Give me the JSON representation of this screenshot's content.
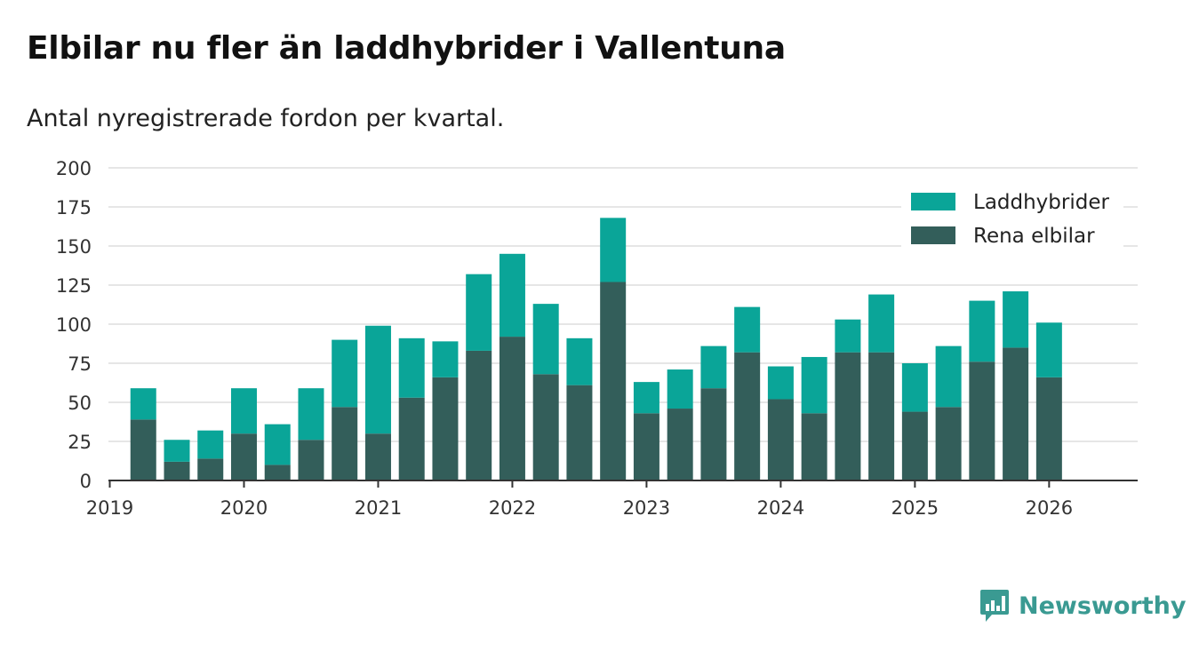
{
  "title": "Elbilar nu fler än laddhybrider i Vallentuna",
  "subtitle": "Antal nyregistrerade fordon per kvartal.",
  "brand": {
    "name": "Newsworthy",
    "icon": "newsworthy-logo-icon",
    "color": "#3a9a92"
  },
  "colors": {
    "laddhybrider": "#0aa598",
    "elbilar": "#335e5a",
    "grid": "#dddddd",
    "axis": "#333333"
  },
  "chart_data": {
    "type": "bar",
    "stacked": true,
    "title": "Elbilar nu fler än laddhybrider i Vallentuna",
    "subtitle": "Antal nyregistrerade fordon per kvartal.",
    "xlabel": "",
    "ylabel": "",
    "ylim": [
      0,
      200
    ],
    "yticks": [
      0,
      25,
      50,
      75,
      100,
      125,
      150,
      175,
      200
    ],
    "ytick_labels": [
      "0",
      "25",
      "50",
      "75",
      "100",
      "125",
      "150",
      "175",
      "200"
    ],
    "xticks": [
      2019,
      2020,
      2021,
      2022,
      2023,
      2024,
      2025,
      2026
    ],
    "xtick_labels": [
      "2019",
      "2020",
      "2021",
      "2022",
      "2023",
      "2024",
      "2025",
      "2026"
    ],
    "grid": true,
    "legend_position": "top-right",
    "categories": [
      "2019 Q2",
      "2019 Q3",
      "2019 Q4",
      "2020 Q1",
      "2020 Q2",
      "2020 Q3",
      "2020 Q4",
      "2021 Q1",
      "2021 Q2",
      "2021 Q3",
      "2021 Q4",
      "2022 Q1",
      "2022 Q2",
      "2022 Q3",
      "2022 Q4",
      "2023 Q1",
      "2023 Q2",
      "2023 Q3",
      "2023 Q4",
      "2024 Q1",
      "2024 Q2",
      "2024 Q3",
      "2024 Q4",
      "2025 Q1",
      "2025 Q2",
      "2025 Q3",
      "2025 Q4",
      "2026 Q1"
    ],
    "x_positions": [
      2019.25,
      2019.5,
      2019.75,
      2020.0,
      2020.25,
      2020.5,
      2020.75,
      2021.0,
      2021.25,
      2021.5,
      2021.75,
      2022.0,
      2022.25,
      2022.5,
      2022.75,
      2023.0,
      2023.25,
      2023.5,
      2023.75,
      2024.0,
      2024.25,
      2024.5,
      2024.75,
      2025.0,
      2025.25,
      2025.5,
      2025.75,
      2026.0
    ],
    "series": [
      {
        "name": "Rena elbilar",
        "values": [
          39,
          12,
          14,
          30,
          10,
          26,
          47,
          30,
          53,
          66,
          83,
          92,
          68,
          61,
          127,
          43,
          46,
          59,
          82,
          52,
          43,
          82,
          82,
          44,
          47,
          76,
          85,
          66
        ]
      },
      {
        "name": "Laddhybrider",
        "values": [
          20,
          14,
          18,
          29,
          26,
          33,
          43,
          69,
          38,
          23,
          49,
          53,
          45,
          30,
          41,
          20,
          25,
          27,
          29,
          21,
          36,
          21,
          37,
          31,
          39,
          39,
          36,
          35
        ]
      }
    ],
    "legend": [
      "Laddhybrider",
      "Rena elbilar"
    ]
  }
}
